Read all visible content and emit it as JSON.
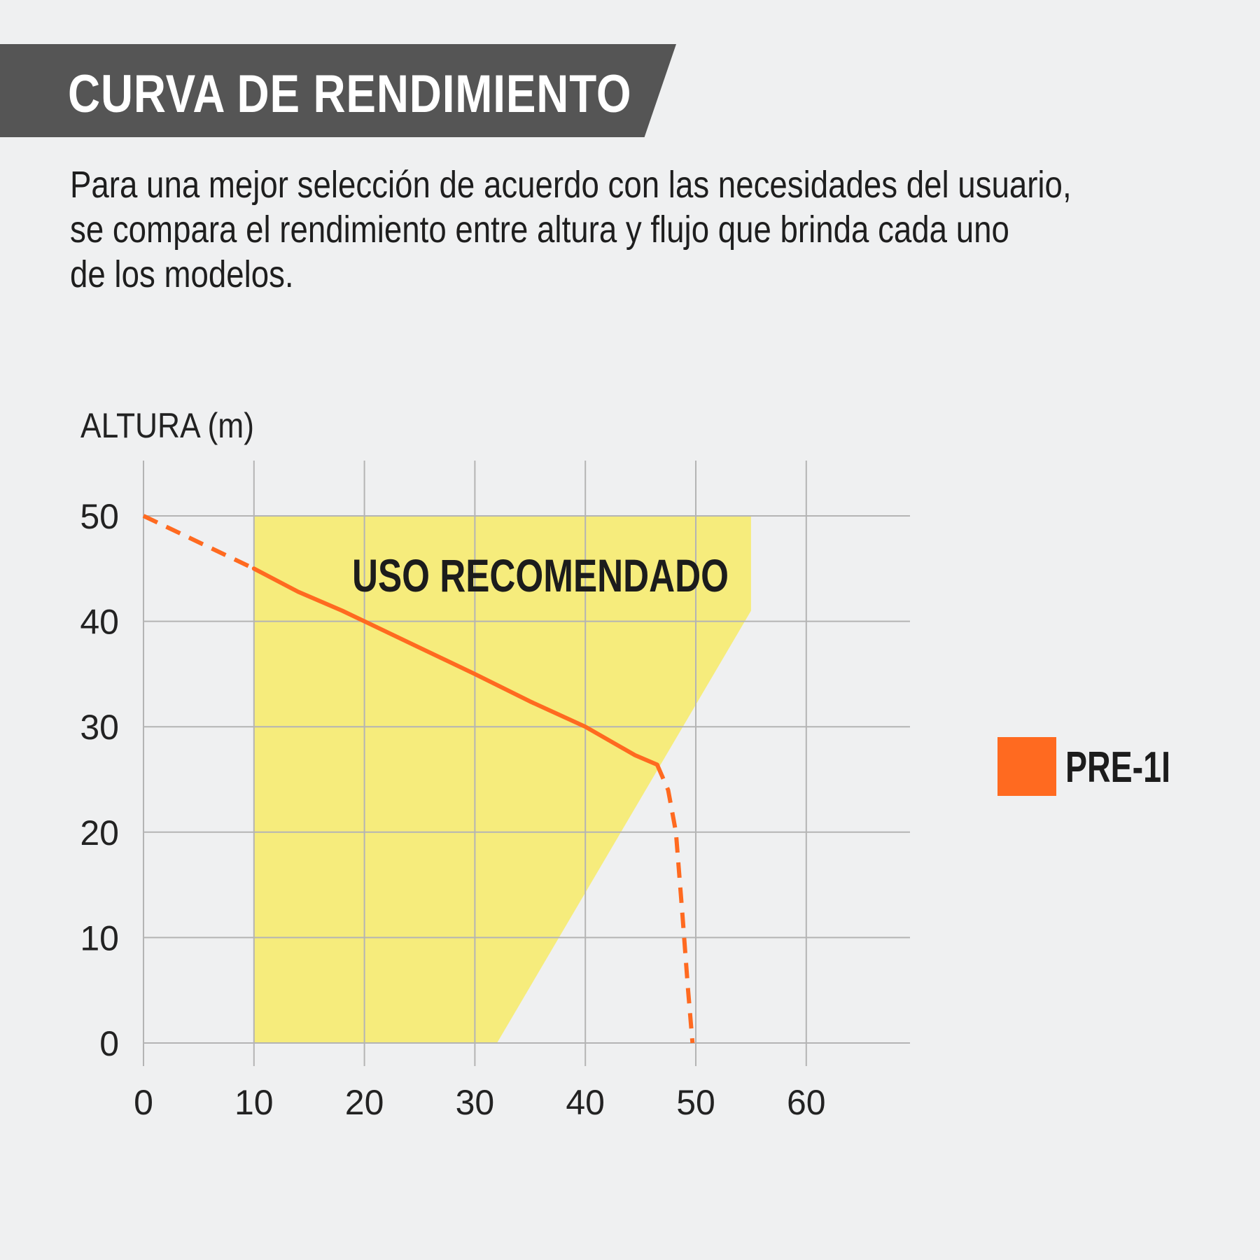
{
  "header": {
    "title": "CURVA DE RENDIMIENTO"
  },
  "intro": {
    "lines": [
      "Para una mejor selección de acuerdo con las necesidades del usuario,",
      "se compara el rendimiento entre altura y flujo que brinda cada uno",
      "de los modelos."
    ]
  },
  "chart_data": {
    "type": "line",
    "ylabel": "ALTURA (m)",
    "xlabel": "",
    "xlim": [
      0,
      70
    ],
    "ylim": [
      0,
      50
    ],
    "x_ticks": [
      "0",
      "10",
      "20",
      "30",
      "40",
      "50",
      "60"
    ],
    "y_ticks": [
      "0",
      "10",
      "20",
      "30",
      "40",
      "50"
    ],
    "grid": true,
    "legend_position": "right",
    "region": {
      "label": "USO RECOMENDADO",
      "color": "#f6ec7c",
      "polygon": [
        [
          10,
          0
        ],
        [
          10,
          50
        ],
        [
          55,
          50
        ],
        [
          55,
          41
        ],
        [
          32,
          0
        ]
      ]
    },
    "series": [
      {
        "name": "PRE-1I",
        "color": "#ff6a20",
        "dashed_start": [
          [
            0,
            50
          ],
          [
            10,
            45
          ]
        ],
        "solid": [
          [
            10,
            45
          ],
          [
            14,
            42.8
          ],
          [
            18,
            41
          ],
          [
            20,
            40
          ],
          [
            25,
            37.5
          ],
          [
            30,
            35
          ],
          [
            35,
            32.4
          ],
          [
            40,
            30
          ],
          [
            42,
            28.8
          ],
          [
            44.5,
            27.3
          ],
          [
            46.5,
            26.4
          ]
        ],
        "dashed_end": [
          [
            46.5,
            26.4
          ],
          [
            47.5,
            24
          ],
          [
            48.2,
            20
          ],
          [
            48.8,
            12
          ],
          [
            49.3,
            5
          ],
          [
            49.7,
            0
          ]
        ]
      }
    ]
  }
}
